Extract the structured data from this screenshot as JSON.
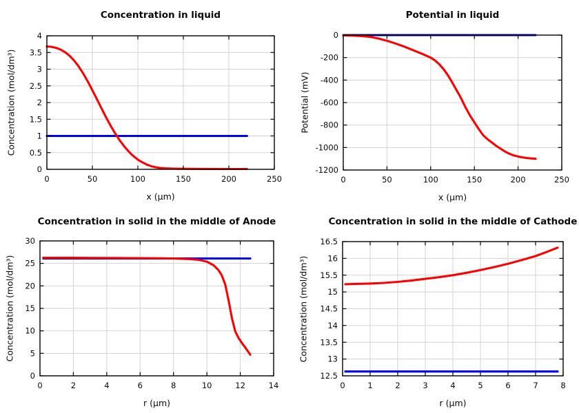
{
  "figure": {
    "background": "#ffffff",
    "grid_color": "#d3d3d3",
    "axis_color": "#000000",
    "text_color": "#090909"
  },
  "chart_data": [
    {
      "type": "line",
      "title": "Concentration in liquid",
      "xlabel": "x (µm)",
      "ylabel": "Concentration (mol/dm³)",
      "xlim": [
        0,
        250
      ],
      "ylim": [
        0,
        4
      ],
      "xticks": [
        0,
        50,
        100,
        150,
        200,
        250
      ],
      "yticks": [
        0,
        0.5,
        1,
        1.5,
        2,
        2.5,
        3,
        3.5,
        4
      ],
      "grid": true,
      "legend": "none",
      "series": [
        {
          "name": "blue-constant-line",
          "color": "#0000ff",
          "points": [
            [
              0,
              1
            ],
            [
              220,
              1
            ]
          ]
        },
        {
          "name": "red-profile",
          "color": "#ff0000",
          "points": [
            [
              0,
              3.68
            ],
            [
              5,
              3.67
            ],
            [
              10,
              3.64
            ],
            [
              15,
              3.59
            ],
            [
              20,
              3.51
            ],
            [
              25,
              3.4
            ],
            [
              30,
              3.26
            ],
            [
              35,
              3.08
            ],
            [
              40,
              2.87
            ],
            [
              45,
              2.63
            ],
            [
              50,
              2.37
            ],
            [
              55,
              2.1
            ],
            [
              60,
              1.83
            ],
            [
              65,
              1.56
            ],
            [
              70,
              1.31
            ],
            [
              75,
              1.08
            ],
            [
              80,
              0.87
            ],
            [
              85,
              0.69
            ],
            [
              90,
              0.53
            ],
            [
              95,
              0.4
            ],
            [
              100,
              0.29
            ],
            [
              105,
              0.21
            ],
            [
              110,
              0.14
            ],
            [
              115,
              0.09
            ],
            [
              120,
              0.06
            ],
            [
              125,
              0.04
            ],
            [
              130,
              0.03
            ],
            [
              140,
              0.02
            ],
            [
              160,
              0.015
            ],
            [
              180,
              0.012
            ],
            [
              200,
              0.01
            ],
            [
              220,
              0.01
            ]
          ]
        }
      ]
    },
    {
      "type": "line",
      "title": "Potential in liquid",
      "xlabel": "x (µm)",
      "ylabel": "Potential (mV)",
      "xlim": [
        0,
        250
      ],
      "ylim": [
        -1200,
        0
      ],
      "xticks": [
        0,
        50,
        100,
        150,
        200,
        250
      ],
      "yticks": [
        0,
        -200,
        -400,
        -600,
        -800,
        -1000,
        -1200
      ],
      "grid": true,
      "legend": "none",
      "series": [
        {
          "name": "blue-constant-line",
          "color": "#0000ff",
          "points": [
            [
              0,
              0
            ],
            [
              220,
              0
            ]
          ]
        },
        {
          "name": "red-profile",
          "color": "#ff0000",
          "points": [
            [
              0,
              -2
            ],
            [
              10,
              -4
            ],
            [
              20,
              -8
            ],
            [
              30,
              -15
            ],
            [
              40,
              -30
            ],
            [
              50,
              -50
            ],
            [
              60,
              -75
            ],
            [
              70,
              -103
            ],
            [
              80,
              -134
            ],
            [
              90,
              -166
            ],
            [
              100,
              -200
            ],
            [
              105,
              -225
            ],
            [
              110,
              -260
            ],
            [
              115,
              -305
            ],
            [
              120,
              -360
            ],
            [
              125,
              -425
            ],
            [
              128,
              -468
            ],
            [
              130,
              -495
            ],
            [
              132,
              -522
            ],
            [
              135,
              -565
            ],
            [
              140,
              -645
            ],
            [
              145,
              -715
            ],
            [
              150,
              -775
            ],
            [
              155,
              -835
            ],
            [
              160,
              -890
            ],
            [
              165,
              -925
            ],
            [
              170,
              -955
            ],
            [
              175,
              -985
            ],
            [
              180,
              -1010
            ],
            [
              185,
              -1035
            ],
            [
              190,
              -1055
            ],
            [
              195,
              -1070
            ],
            [
              200,
              -1080
            ],
            [
              205,
              -1088
            ],
            [
              210,
              -1093
            ],
            [
              215,
              -1097
            ],
            [
              220,
              -1100
            ]
          ]
        }
      ]
    },
    {
      "type": "line",
      "title": "Concentration in solid in the middle of Anode",
      "xlabel": "r (µm)",
      "ylabel": "Concentration (mol/dm³)",
      "xlim": [
        0,
        14
      ],
      "ylim": [
        0,
        30
      ],
      "xticks": [
        0,
        2,
        4,
        6,
        8,
        10,
        12,
        14
      ],
      "yticks": [
        0,
        5,
        10,
        15,
        20,
        25,
        30
      ],
      "grid": true,
      "legend": "none",
      "series": [
        {
          "name": "blue-constant-line",
          "color": "#0000ff",
          "points": [
            [
              0.2,
              26.1
            ],
            [
              12.6,
              26.1
            ]
          ]
        },
        {
          "name": "red-profile",
          "color": "#ff0000",
          "points": [
            [
              0.2,
              26.25
            ],
            [
              2,
              26.23
            ],
            [
              4,
              26.2
            ],
            [
              6,
              26.17
            ],
            [
              7,
              26.15
            ],
            [
              8,
              26.1
            ],
            [
              8.5,
              26.03
            ],
            [
              9,
              25.95
            ],
            [
              9.5,
              25.8
            ],
            [
              10,
              25.4
            ],
            [
              10.4,
              24.6
            ],
            [
              10.7,
              23.5
            ],
            [
              10.9,
              22.3
            ],
            [
              11.1,
              20.3
            ],
            [
              11.3,
              16.8
            ],
            [
              11.5,
              12.8
            ],
            [
              11.7,
              9.9
            ],
            [
              11.9,
              8.4
            ],
            [
              12.1,
              7.3
            ],
            [
              12.3,
              6.3
            ],
            [
              12.45,
              5.5
            ],
            [
              12.6,
              4.7
            ]
          ]
        }
      ]
    },
    {
      "type": "line",
      "title": "Concentration in solid in the middle of Cathode",
      "xlabel": "r (µm)",
      "ylabel": "Concentration (mol/dm³)",
      "xlim": [
        0,
        8
      ],
      "ylim": [
        12.5,
        16.5
      ],
      "xticks": [
        0,
        1,
        2,
        3,
        4,
        5,
        6,
        7,
        8
      ],
      "yticks": [
        12.5,
        13,
        13.5,
        14,
        14.5,
        15,
        15.5,
        16,
        16.5
      ],
      "grid": true,
      "legend": "none",
      "series": [
        {
          "name": "blue-constant-line",
          "color": "#0000ff",
          "points": [
            [
              0.1,
              12.63
            ],
            [
              7.8,
              12.63
            ]
          ]
        },
        {
          "name": "red-profile",
          "color": "#ff0000",
          "points": [
            [
              0.1,
              15.23
            ],
            [
              0.5,
              15.24
            ],
            [
              1,
              15.25
            ],
            [
              1.5,
              15.27
            ],
            [
              2,
              15.3
            ],
            [
              2.5,
              15.34
            ],
            [
              3,
              15.39
            ],
            [
              3.5,
              15.44
            ],
            [
              4,
              15.5
            ],
            [
              4.5,
              15.57
            ],
            [
              5,
              15.65
            ],
            [
              5.5,
              15.74
            ],
            [
              6,
              15.84
            ],
            [
              6.5,
              15.95
            ],
            [
              7,
              16.07
            ],
            [
              7.4,
              16.19
            ],
            [
              7.8,
              16.32
            ]
          ]
        }
      ]
    }
  ]
}
